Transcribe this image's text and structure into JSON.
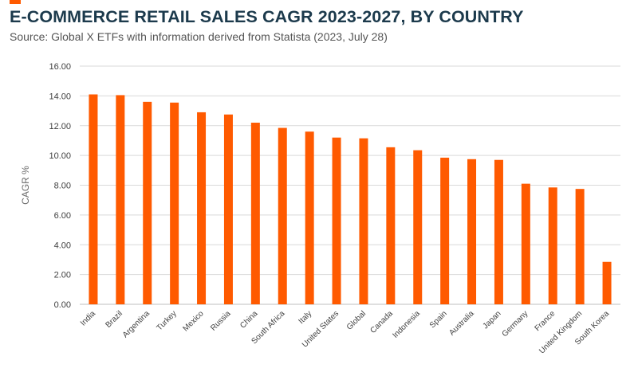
{
  "colors": {
    "accent": "#ff5a00",
    "bar": "#ff5a00",
    "grid": "#d9d9d9",
    "axis": "#bfbfbf"
  },
  "header": {
    "title": "E-COMMERCE RETAIL SALES CAGR 2023-2027, BY COUNTRY",
    "subtitle": "Source: Global X ETFs with information derived from Statista (2023, July 28)"
  },
  "chart_data": {
    "type": "bar",
    "title": "",
    "xlabel": "",
    "ylabel": "CAGR %",
    "ylim": [
      0,
      16
    ],
    "yticks": [
      "0.00",
      "2.00",
      "4.00",
      "6.00",
      "8.00",
      "10.00",
      "12.00",
      "14.00",
      "16.00"
    ],
    "grid": true,
    "legend": "none",
    "categories": [
      "India",
      "Brazil",
      "Argentina",
      "Turkey",
      "Mexico",
      "Russia",
      "China",
      "South Africa",
      "Italy",
      "United States",
      "Global",
      "Canada",
      "Indonesia",
      "Spain",
      "Australia",
      "Japan",
      "Germany",
      "France",
      "United Kingdom",
      "South Korea"
    ],
    "values": [
      14.1,
      14.05,
      13.6,
      13.55,
      12.9,
      12.75,
      12.2,
      11.85,
      11.6,
      11.2,
      11.15,
      10.55,
      10.35,
      9.85,
      9.75,
      9.7,
      8.1,
      7.85,
      7.75,
      2.85
    ]
  }
}
